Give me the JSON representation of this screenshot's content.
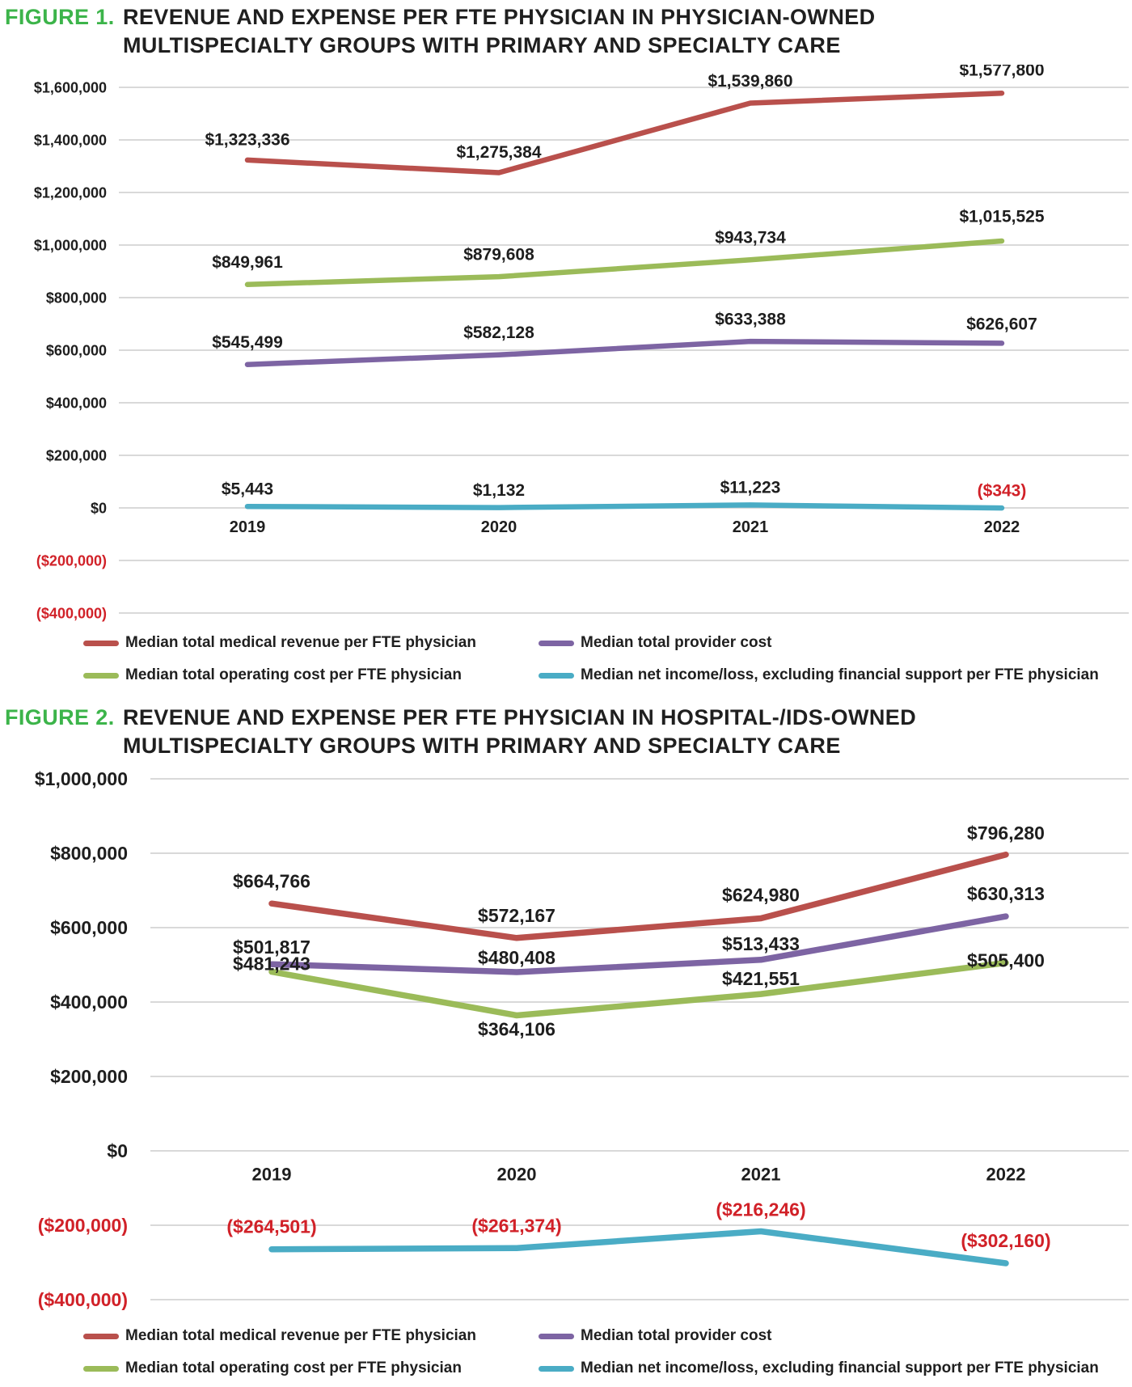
{
  "colors": {
    "caption_green": "#3CB44A",
    "text_dark": "#1E1E1E",
    "negative_red": "#D12128",
    "gridline": "#D9D9D9",
    "series_revenue": "#B9504C",
    "series_operating": "#9BBB59",
    "series_provider": "#7D64A3",
    "series_net": "#4AACC5"
  },
  "figures": [
    {
      "id": "figure1",
      "caption": {
        "label": "FIGURE 1.",
        "title_line1": "REVENUE AND EXPENSE PER FTE PHYSICIAN IN PHYSICIAN-OWNED",
        "title_line2": "MULTISPECIALTY GROUPS WITH PRIMARY AND SPECIALTY CARE"
      },
      "chart_data": {
        "type": "line",
        "categories": [
          "2019",
          "2020",
          "2021",
          "2022"
        ],
        "ylim": [
          -400000,
          1600000
        ],
        "ytick_step": 200000,
        "grid": "horizontal",
        "legend_position": "bottom",
        "yticks": [
          {
            "label": "$1,600,000",
            "value": 1600000
          },
          {
            "label": "$1,400,000",
            "value": 1400000
          },
          {
            "label": "$1,200,000",
            "value": 1200000
          },
          {
            "label": "$1,000,000",
            "value": 1000000
          },
          {
            "label": "$800,000",
            "value": 800000
          },
          {
            "label": "$600,000",
            "value": 600000
          },
          {
            "label": "$400,000",
            "value": 400000
          },
          {
            "label": "$200,000",
            "value": 200000
          },
          {
            "label": "$0",
            "value": 0
          },
          {
            "label": "($200,000)",
            "value": -200000
          },
          {
            "label": "($400,000)",
            "value": -400000
          }
        ],
        "series": [
          {
            "name": "Median total medical revenue per FTE physician",
            "color": "#B9504C",
            "values": [
              1323336,
              1275384,
              1539860,
              1577800
            ],
            "point_labels": [
              "$1,323,336",
              "$1,275,384",
              "$1,539,860",
              "$1,577,800"
            ],
            "label_dy": [
              -26,
              -26,
              -28,
              -29
            ]
          },
          {
            "name": "Median total operating cost per FTE physician",
            "color": "#9BBB59",
            "values": [
              849961,
              879608,
              943734,
              1015525
            ],
            "point_labels": [
              "$849,961",
              "$879,608",
              "$943,734",
              "$1,015,525"
            ],
            "label_dy": [
              -28,
              -28,
              -28,
              -31
            ]
          },
          {
            "name": "Median total provider cost",
            "color": "#7D64A3",
            "values": [
              545499,
              582128,
              633388,
              626607
            ],
            "point_labels": [
              "$545,499",
              "$582,128",
              "$633,388",
              "$626,607"
            ],
            "label_dy": [
              -28,
              -28,
              -28,
              -24
            ]
          },
          {
            "name": "Median net income/loss, excluding financial support per FTE physician",
            "color": "#4AACC5",
            "values": [
              5443,
              1132,
              11223,
              -343
            ],
            "point_labels": [
              "$5,443",
              "$1,132",
              "$11,223",
              "($343)"
            ],
            "label_dy": [
              -22,
              -22,
              -22,
              -22
            ]
          }
        ]
      },
      "legend": [
        {
          "label": "Median total medical revenue per FTE physician",
          "color": "#B9504C"
        },
        {
          "label": "Median total provider cost",
          "color": "#7D64A3"
        },
        {
          "label": "Median total operating cost per FTE physician",
          "color": "#9BBB59"
        },
        {
          "label": "Median net income/loss, excluding financial support per FTE physician",
          "color": "#4AACC5"
        }
      ]
    },
    {
      "id": "figure2",
      "caption": {
        "label": "FIGURE 2.",
        "title_line1": "REVENUE AND EXPENSE PER FTE PHYSICIAN IN HOSPITAL-/IDS-OWNED",
        "title_line2": "MULTISPECIALTY GROUPS WITH PRIMARY AND SPECIALTY CARE"
      },
      "chart_data": {
        "type": "line",
        "categories": [
          "2019",
          "2020",
          "2021",
          "2022"
        ],
        "ylim": [
          -400000,
          1000000
        ],
        "ytick_step": 200000,
        "grid": "horizontal",
        "legend_position": "bottom",
        "yticks": [
          {
            "label": "$1,000,000",
            "value": 1000000
          },
          {
            "label": "$800,000",
            "value": 800000
          },
          {
            "label": "$600,000",
            "value": 600000
          },
          {
            "label": "$400,000",
            "value": 400000
          },
          {
            "label": "$200,000",
            "value": 200000
          },
          {
            "label": "$0",
            "value": 0
          },
          {
            "label": "($200,000)",
            "value": -200000
          },
          {
            "label": "($400,000)",
            "value": -400000
          }
        ],
        "series": [
          {
            "name": "Median total medical revenue per FTE physician",
            "color": "#B9504C",
            "values": [
              664766,
              572167,
              624980,
              796280
            ],
            "point_labels": [
              "$664,766",
              "$572,167",
              "$624,980",
              "$796,280"
            ],
            "label_dy": [
              -28,
              -28,
              -29,
              -27
            ]
          },
          {
            "name": "Median total operating cost per FTE physician",
            "color": "#9BBB59",
            "values": [
              481243,
              364106,
              421551,
              505400
            ],
            "point_labels": [
              "$481,243",
              "$364,106",
              "$421,551",
              "$505,400"
            ],
            "label_dy": [
              -10,
              17,
              -19,
              -3
            ]
          },
          {
            "name": "Median total provider cost",
            "color": "#7D64A3",
            "values": [
              501817,
              480408,
              513433,
              630313
            ],
            "point_labels": [
              "$501,817",
              "$480,408",
              "$513,433",
              "$630,313"
            ],
            "label_dy": [
              -21,
              -18,
              -20,
              -28
            ]
          },
          {
            "name": "Median net income/loss, excluding financial support per FTE physician",
            "color": "#4AACC5",
            "values": [
              -264501,
              -261374,
              -216246,
              -302160
            ],
            "point_labels": [
              "($264,501)",
              "($261,374)",
              "($216,246)",
              "($302,160)"
            ],
            "label_dy": [
              -28,
              -28,
              -27,
              -28
            ]
          }
        ]
      },
      "legend": [
        {
          "label": "Median total medical revenue per FTE physician",
          "color": "#B9504C"
        },
        {
          "label": "Median total provider cost",
          "color": "#7D64A3"
        },
        {
          "label": "Median total operating cost per FTE physician",
          "color": "#9BBB59"
        },
        {
          "label": "Median net income/loss, excluding financial support per FTE physician",
          "color": "#4AACC5"
        }
      ]
    }
  ]
}
